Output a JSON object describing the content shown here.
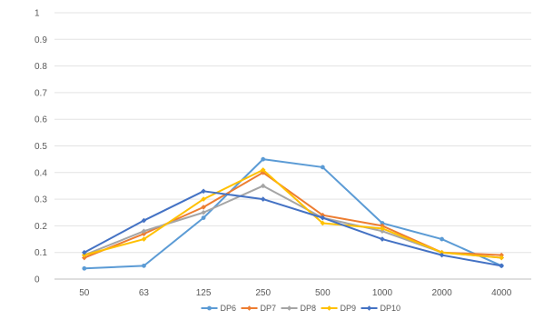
{
  "chart_data": {
    "type": "line",
    "categories": [
      "50",
      "63",
      "125",
      "250",
      "500",
      "1000",
      "2000",
      "4000"
    ],
    "ylim": [
      0,
      1
    ],
    "yticks": [
      "0",
      "0.1",
      "0.2",
      "0.3",
      "0.4",
      "0.5",
      "0.6",
      "0.7",
      "0.8",
      "0.9",
      "1"
    ],
    "grid": true,
    "legend_position": "bottom",
    "series": [
      {
        "name": "DP6",
        "color": "#5b9bd5",
        "marker": "circle",
        "values": [
          0.04,
          0.05,
          0.23,
          0.45,
          0.42,
          0.21,
          0.15,
          0.05
        ]
      },
      {
        "name": "DP7",
        "color": "#ed7d31",
        "marker": "diamond",
        "values": [
          0.08,
          0.17,
          0.27,
          0.4,
          0.24,
          0.2,
          0.1,
          0.09
        ]
      },
      {
        "name": "DP8",
        "color": "#a5a5a5",
        "marker": "diamond",
        "values": [
          0.09,
          0.18,
          0.25,
          0.35,
          0.23,
          0.18,
          0.1,
          0.08
        ]
      },
      {
        "name": "DP9",
        "color": "#ffc000",
        "marker": "diamond",
        "values": [
          0.09,
          0.15,
          0.3,
          0.41,
          0.21,
          0.19,
          0.1,
          0.08
        ]
      },
      {
        "name": "DP10",
        "color": "#4472c4",
        "marker": "diamond",
        "values": [
          0.1,
          0.22,
          0.33,
          0.3,
          0.23,
          0.15,
          0.09,
          0.05
        ]
      }
    ]
  }
}
